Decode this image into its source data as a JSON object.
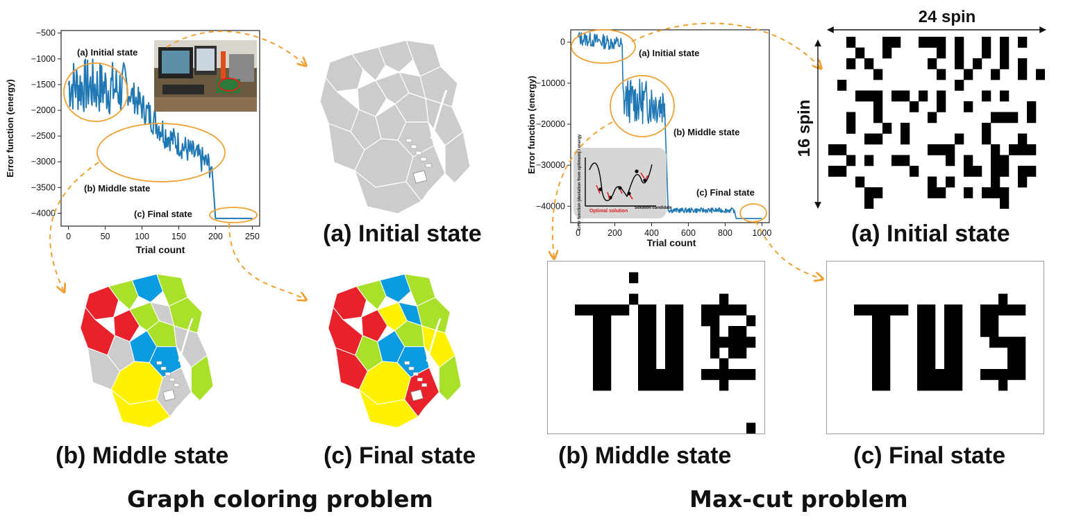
{
  "colors": {
    "line": "#1f77b4",
    "ellipse": "#f0a030",
    "red": "#e8212a",
    "green": "#a8e02a",
    "blue": "#0a9be0",
    "yellow": "#fff200",
    "gray": "#cccccc"
  },
  "graph_coloring": {
    "problem_title": "Graph coloring problem",
    "captions": {
      "initial": "(a) Initial state",
      "middle": "(b) Middle state",
      "final": "(c) Final state"
    },
    "region_colors_middle": [
      "red",
      "green",
      "blue",
      "green",
      "red",
      "green",
      "gray",
      "green",
      "red",
      "gray",
      "blue",
      "green",
      "gray",
      "blue",
      "gray",
      "yellow",
      "yellow",
      "gray",
      "green",
      "gray"
    ],
    "region_colors_final": [
      "red",
      "green",
      "blue",
      "green",
      "red",
      "yellow",
      "blue",
      "green",
      "red",
      "green",
      "blue",
      "green",
      "yellow",
      "blue",
      "red",
      "yellow",
      "yellow",
      "green",
      "green",
      "red"
    ]
  },
  "maxcut": {
    "problem_title": "Max-cut problem",
    "captions": {
      "initial": "(a) Initial state",
      "middle": "(b) Middle state",
      "final": "(c) Final state"
    },
    "width_label": "24 spin",
    "height_label": "16 spin",
    "inset": {
      "ylabel": "Error function (deviation from optimum) / energy",
      "xlabel": "Solution candidate",
      "optimal_label": "Optimal solution"
    }
  },
  "chart_data": [
    {
      "type": "line",
      "xlabel": "Trial count",
      "ylabel": "Error function (energy)",
      "xlim": [
        -10,
        260
      ],
      "ylim": [
        -4250,
        -450
      ],
      "xticks": [
        0,
        50,
        100,
        150,
        200,
        250
      ],
      "yticks": [
        -500,
        -1000,
        -1500,
        -2000,
        -2500,
        -3000,
        -3500,
        -4000
      ],
      "annotations": [
        "(a) Initial state",
        "(b) Middle state",
        "(c) Final state"
      ],
      "series": [
        {
          "x": [
            0,
            80,
            135,
            195,
            200,
            250
          ],
          "y": [
            -1500,
            -1600,
            -2500,
            -3100,
            -4100,
            -4100
          ]
        }
      ]
    },
    {
      "type": "line",
      "xlabel": "Trial count",
      "ylabel": "Error function (energy)",
      "xlim": [
        -40,
        1040
      ],
      "ylim": [
        -44000,
        3000
      ],
      "xticks": [
        0,
        200,
        400,
        600,
        800,
        1000
      ],
      "yticks": [
        0,
        -10000,
        -20000,
        -30000,
        -40000
      ],
      "annotations": [
        "(a) Initial state",
        "(b) Middle state",
        "(c) Final state"
      ],
      "series": [
        {
          "x": [
            0,
            240,
            245,
            470,
            490,
            850,
            860,
            1000
          ],
          "y": [
            1000,
            -500,
            -14000,
            -15000,
            -41000,
            -41000,
            -43000,
            -43000
          ]
        }
      ]
    }
  ]
}
